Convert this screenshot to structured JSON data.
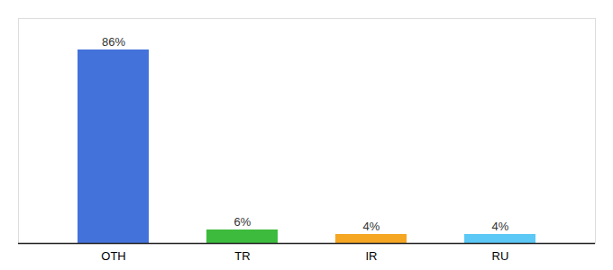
{
  "chart_data": {
    "type": "bar",
    "categories": [
      "OTH",
      "TR",
      "IR",
      "RU"
    ],
    "values": [
      86,
      6,
      4,
      4
    ],
    "value_labels": [
      "86%",
      "6%",
      "4%",
      "4%"
    ],
    "colors": [
      "#4472db",
      "#3dbb3d",
      "#f5a623",
      "#5bc8f5"
    ],
    "ylim": [
      0,
      100
    ],
    "data_labels": true,
    "tick_labels": "x"
  }
}
